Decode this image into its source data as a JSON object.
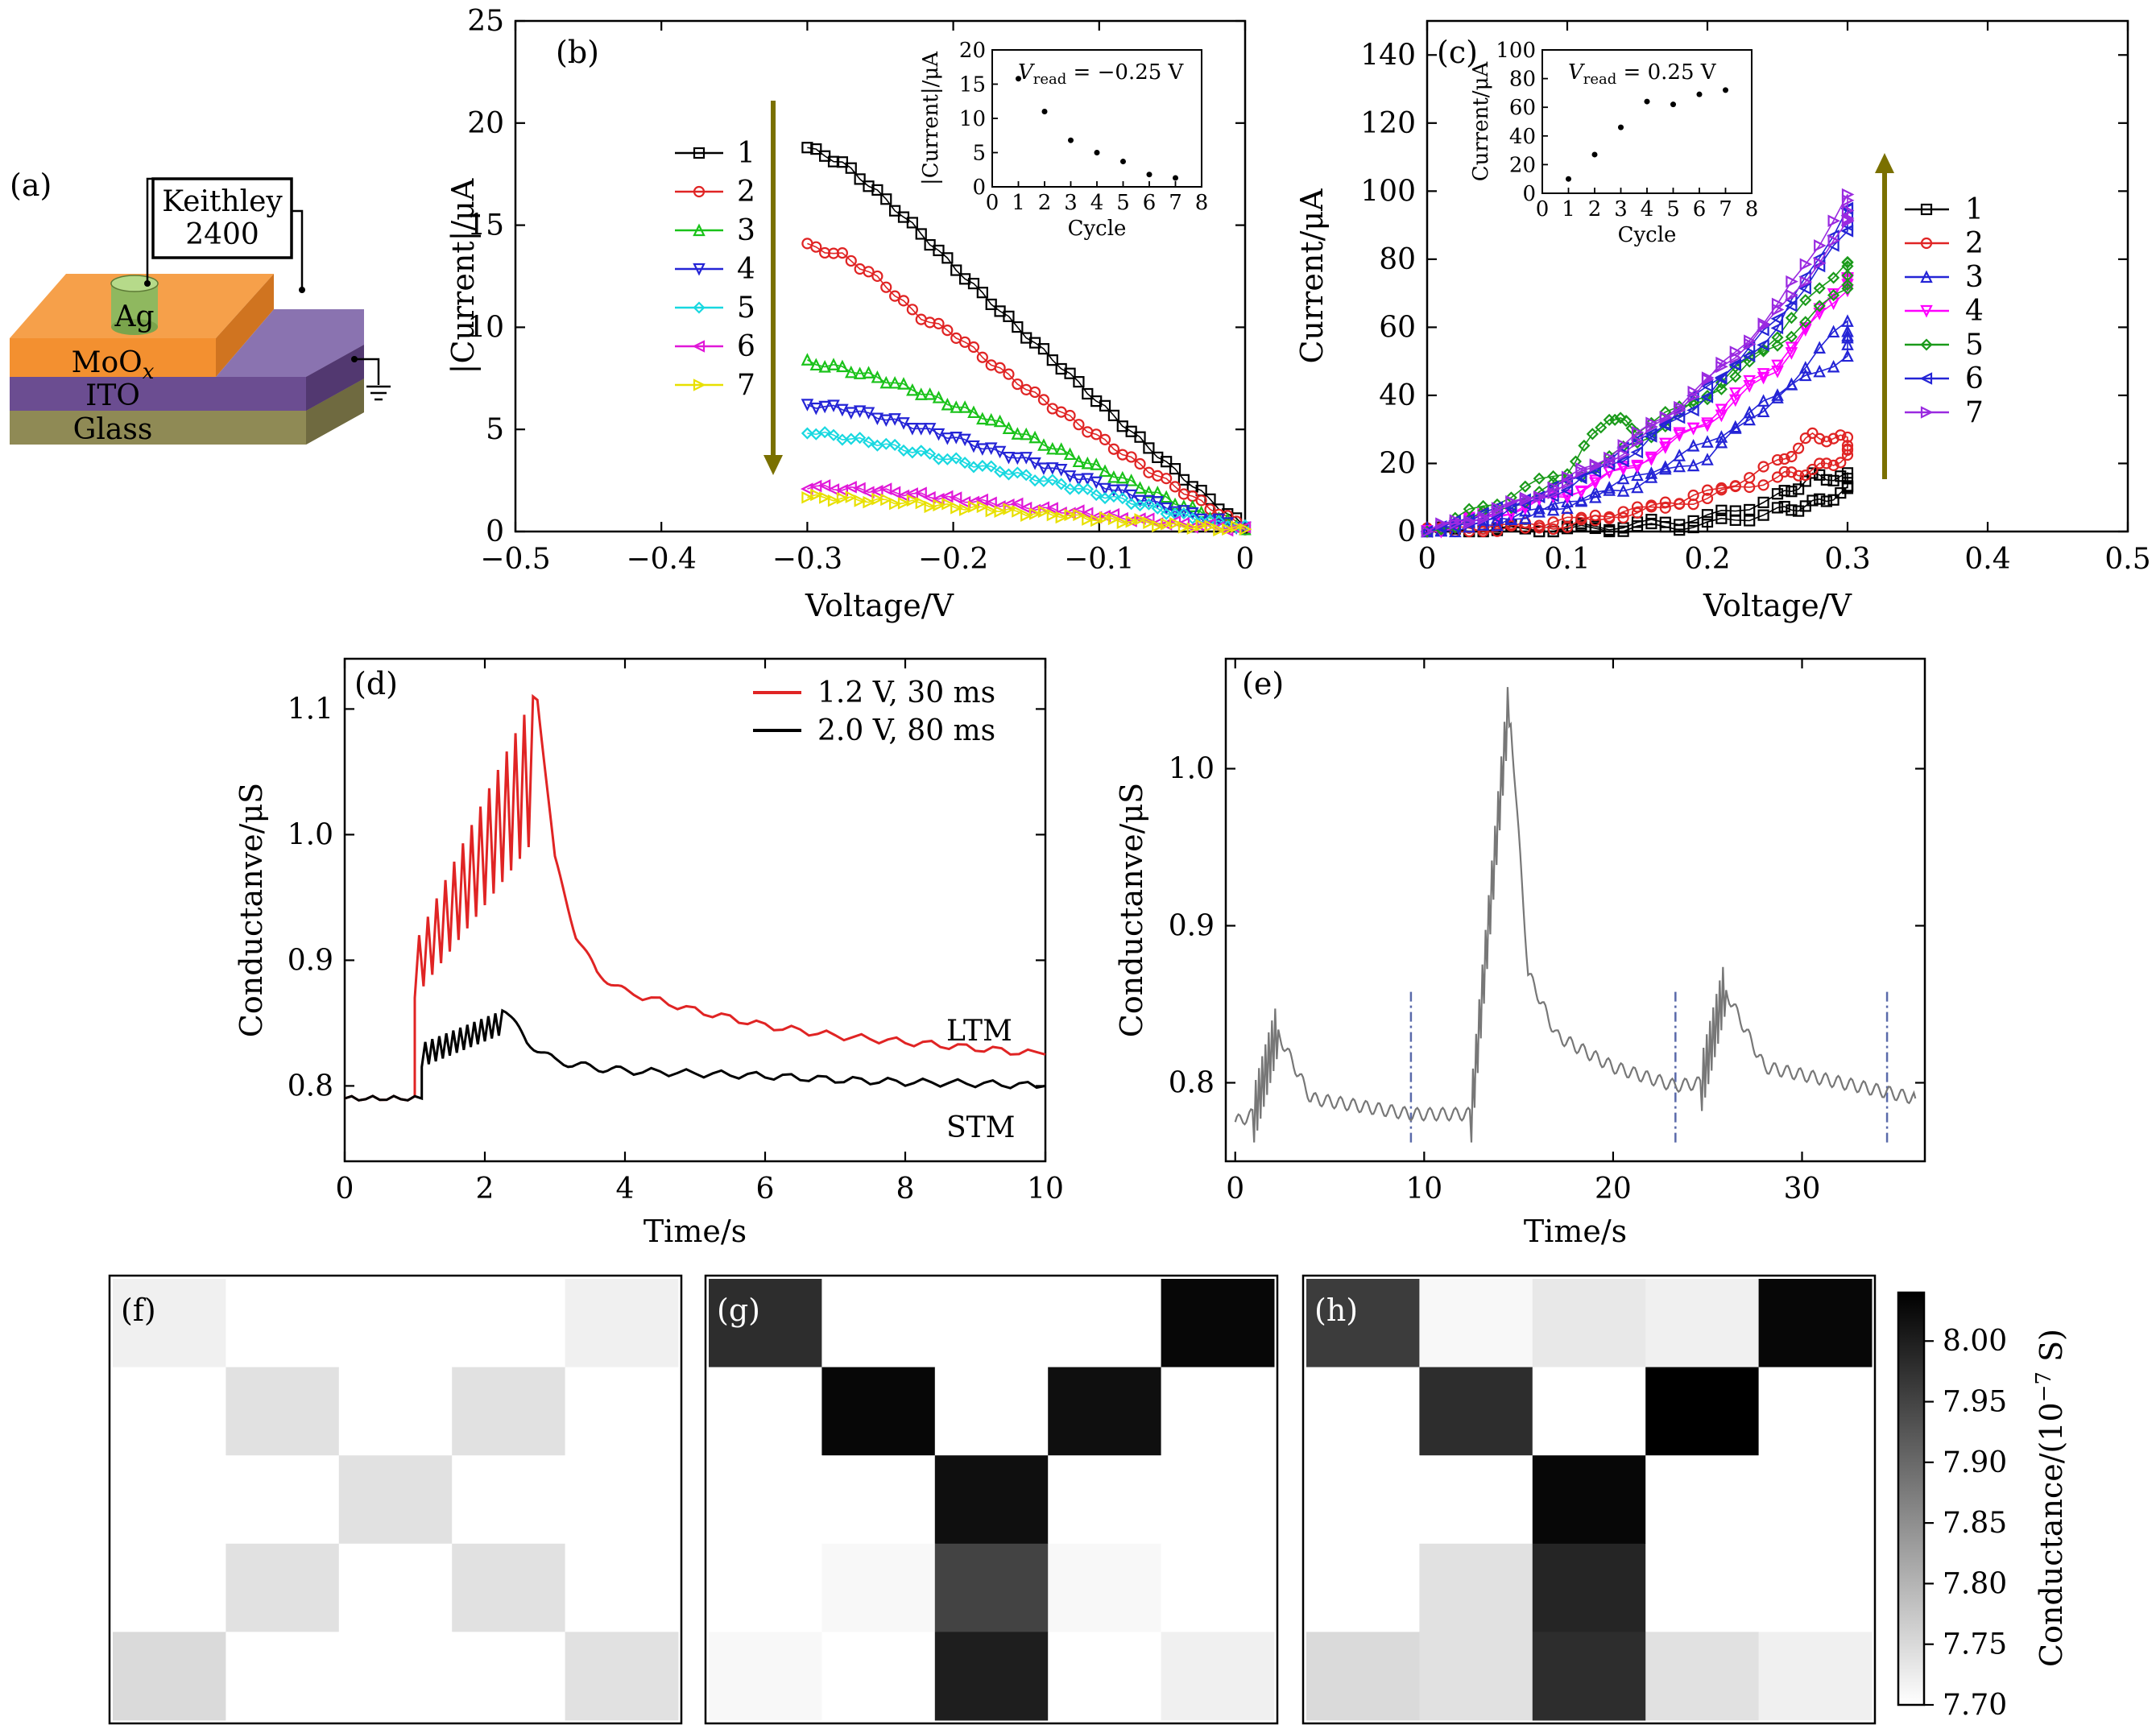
{
  "panel_labels": [
    "(a)",
    "(b)",
    "(c)",
    "(d)",
    "(e)",
    "(f)",
    "(g)",
    "(h)"
  ],
  "device": {
    "instrument_line1": "Keithley",
    "instrument_line2": "2400",
    "electrode": "Ag",
    "layer_moox": "MoOx",
    "layer_ito": "ITO",
    "layer_glass": "Glass",
    "colors": {
      "moox": "#f6a04a",
      "ito": "#6b4d91",
      "glass": "#8f8a55",
      "ag": "#9bc26a",
      "ito_top": "#8a73b0"
    }
  },
  "series_colors": [
    "#000000",
    "#e02424",
    "#19c219",
    "#2424d6",
    "#18d8e0",
    "#e018d8",
    "#e8e000"
  ],
  "series_colors_c": [
    "#000000",
    "#e02424",
    "#2424d6",
    "#ff00ff",
    "#1a9a1a",
    "#2424d6",
    "#9a2ae0"
  ],
  "chart_data": [
    {
      "panel": "(b)",
      "type": "line",
      "xlabel": "Voltage/V",
      "ylabel": "|Current|/μA",
      "xlim": [
        -0.5,
        0
      ],
      "ylim": [
        0,
        25
      ],
      "xticks": [
        -0.5,
        -0.4,
        -0.3,
        -0.2,
        -0.1,
        0
      ],
      "xtick_labels": [
        "−0.5",
        "−0.4",
        "−0.3",
        "−0.2",
        "−0.1",
        "0"
      ],
      "yticks": [
        0,
        5,
        10,
        15,
        20,
        25
      ],
      "legend": [
        "1",
        "2",
        "3",
        "4",
        "5",
        "6",
        "7"
      ],
      "legend_position": "left",
      "markers": [
        "square",
        "circle",
        "triangle-up",
        "triangle-down",
        "diamond",
        "triangle-left",
        "triangle-right"
      ],
      "x": [
        -0.3,
        -0.275,
        -0.25,
        -0.225,
        -0.2,
        -0.175,
        -0.15,
        -0.125,
        -0.1,
        -0.075,
        -0.05,
        -0.025,
        0
      ],
      "series": [
        {
          "name": "1",
          "values": [
            18.8,
            18.0,
            16.5,
            14.8,
            13.0,
            11.3,
            9.6,
            8.0,
            6.3,
            4.7,
            3.1,
            1.6,
            0.2
          ]
        },
        {
          "name": "2",
          "values": [
            14.0,
            13.5,
            12.3,
            10.6,
            9.7,
            8.3,
            7.0,
            5.8,
            4.6,
            3.4,
            2.3,
            1.2,
            0.2
          ]
        },
        {
          "name": "3",
          "values": [
            8.3,
            8.0,
            7.5,
            6.9,
            6.2,
            5.5,
            4.7,
            3.9,
            3.1,
            2.3,
            1.5,
            0.8,
            0.2
          ]
        },
        {
          "name": "4",
          "values": [
            6.2,
            6.0,
            5.6,
            5.1,
            4.6,
            4.0,
            3.5,
            2.9,
            2.3,
            1.7,
            1.1,
            0.6,
            0.2
          ]
        },
        {
          "name": "5",
          "values": [
            4.9,
            4.6,
            4.3,
            3.9,
            3.5,
            3.1,
            2.7,
            2.3,
            1.8,
            1.4,
            0.9,
            0.5,
            0.2
          ]
        },
        {
          "name": "6",
          "values": [
            2.2,
            2.1,
            2.0,
            1.8,
            1.6,
            1.4,
            1.2,
            1.0,
            0.8,
            0.6,
            0.4,
            0.25,
            0.1
          ]
        },
        {
          "name": "7",
          "values": [
            1.7,
            1.6,
            1.5,
            1.4,
            1.2,
            1.1,
            0.9,
            0.8,
            0.6,
            0.5,
            0.3,
            0.2,
            0.1
          ]
        }
      ],
      "arrow": {
        "direction": "down",
        "color": "#7a7000"
      },
      "inset": {
        "type": "scatter",
        "annotation": "V_read = −0.25 V",
        "annotation_v": "V",
        "annotation_sub": "read",
        "annotation_rest": " = −0.25 V",
        "xlabel": "Cycle",
        "ylabel": "|Current|/μA",
        "xlim": [
          0,
          8
        ],
        "ylim": [
          0,
          20
        ],
        "xticks": [
          0,
          1,
          2,
          3,
          4,
          5,
          6,
          7,
          8
        ],
        "yticks": [
          0,
          5,
          10,
          15,
          20
        ],
        "x": [
          1,
          2,
          3,
          4,
          5,
          6,
          7
        ],
        "y": [
          15.8,
          11.0,
          6.8,
          5.0,
          3.7,
          1.8,
          1.3
        ]
      }
    },
    {
      "panel": "(c)",
      "type": "line",
      "xlabel": "Voltage/V",
      "ylabel": "Current/μA",
      "xlim": [
        0,
        0.5
      ],
      "ylim": [
        0,
        150
      ],
      "xticks": [
        0,
        0.1,
        0.2,
        0.3,
        0.4,
        0.5
      ],
      "xtick_labels": [
        "0",
        "0.1",
        "0.2",
        "0.3",
        "0.4",
        "0.5"
      ],
      "yticks": [
        0,
        20,
        40,
        60,
        80,
        100,
        120,
        140
      ],
      "legend": [
        "1",
        "2",
        "3",
        "4",
        "5",
        "6",
        "7"
      ],
      "legend_position": "right",
      "markers": [
        "square",
        "circle",
        "triangle-up",
        "triangle-down",
        "diamond",
        "triangle-left",
        "triangle-right"
      ],
      "series": [
        {
          "name": "1",
          "x": [
            0,
            0.05,
            0.1,
            0.15,
            0.2,
            0.25,
            0.275,
            0.3,
            0.3,
            0.275,
            0.25,
            0.2,
            0.15,
            0.1,
            0.05,
            0
          ],
          "values": [
            0,
            0.5,
            1,
            2,
            4,
            10,
            16,
            16,
            12,
            8,
            6,
            2,
            1,
            0.5,
            0.2,
            0
          ]
        },
        {
          "name": "2",
          "x": [
            0,
            0.05,
            0.1,
            0.15,
            0.2,
            0.25,
            0.275,
            0.3,
            0.3,
            0.275,
            0.25,
            0.2,
            0.15,
            0.1,
            0.05,
            0
          ],
          "values": [
            0,
            1,
            3,
            6,
            11,
            20,
            28,
            27,
            22,
            18,
            16,
            10,
            6,
            2,
            1,
            0
          ]
        },
        {
          "name": "3",
          "x": [
            0,
            0.05,
            0.1,
            0.15,
            0.2,
            0.25,
            0.3,
            0.3,
            0.25,
            0.2,
            0.15,
            0.1,
            0.05,
            0
          ],
          "values": [
            0,
            3,
            8,
            16,
            26,
            40,
            62,
            52,
            40,
            22,
            14,
            8,
            3,
            0
          ]
        },
        {
          "name": "4",
          "x": [
            0,
            0.05,
            0.1,
            0.15,
            0.2,
            0.25,
            0.3,
            0.3,
            0.25,
            0.2,
            0.15,
            0.1,
            0.05,
            0
          ],
          "values": [
            0,
            5,
            11,
            20,
            32,
            48,
            75,
            72,
            50,
            33,
            20,
            11,
            5,
            0
          ]
        },
        {
          "name": "5",
          "x": [
            0,
            0.05,
            0.1,
            0.13,
            0.15,
            0.2,
            0.25,
            0.3,
            0.3,
            0.25,
            0.2,
            0.15,
            0.1,
            0.05,
            0
          ],
          "values": [
            0,
            9,
            18,
            34,
            30,
            40,
            58,
            80,
            72,
            55,
            40,
            26,
            15,
            6,
            0
          ]
        },
        {
          "name": "6",
          "x": [
            0,
            0.05,
            0.1,
            0.15,
            0.2,
            0.25,
            0.3,
            0.3,
            0.25,
            0.2,
            0.15,
            0.1,
            0.05,
            0
          ],
          "values": [
            0,
            5,
            13,
            24,
            40,
            60,
            95,
            88,
            62,
            42,
            26,
            14,
            6,
            0
          ]
        },
        {
          "name": "7",
          "x": [
            0,
            0.05,
            0.1,
            0.15,
            0.2,
            0.25,
            0.3,
            0.3,
            0.25,
            0.2,
            0.15,
            0.1,
            0.05,
            0
          ],
          "values": [
            0,
            6,
            14,
            26,
            44,
            66,
            98,
            90,
            64,
            44,
            28,
            15,
            6,
            0
          ]
        }
      ],
      "arrow": {
        "direction": "up",
        "color": "#7a7000"
      },
      "inset": {
        "type": "scatter",
        "annotation": "V_read = 0.25 V",
        "annotation_v": "V",
        "annotation_sub": "read",
        "annotation_rest": " = 0.25 V",
        "xlabel": "Cycle",
        "ylabel": "Current/μA",
        "xlim": [
          0,
          8
        ],
        "ylim": [
          0,
          100
        ],
        "xticks": [
          0,
          1,
          2,
          3,
          4,
          5,
          6,
          7,
          8
        ],
        "yticks": [
          0,
          20,
          40,
          60,
          80,
          100
        ],
        "x": [
          1,
          2,
          3,
          4,
          5,
          6,
          7
        ],
        "y": [
          10,
          27,
          46,
          64,
          62,
          69,
          72
        ]
      }
    },
    {
      "panel": "(d)",
      "type": "line",
      "xlabel": "Time/s",
      "ylabel": "Conductanve/μS",
      "xlim": [
        0,
        10
      ],
      "ylim": [
        0.74,
        1.14
      ],
      "xticks": [
        0,
        2,
        4,
        6,
        8,
        10
      ],
      "yticks": [
        0.8,
        0.9,
        1.0,
        1.1
      ],
      "ytick_labels": [
        "0.8",
        "0.9",
        "1.0",
        "1.1"
      ],
      "legend_position": "top-right",
      "series": [
        {
          "name": "1.2 V, 30 ms",
          "color": "#e02424",
          "pulses": {
            "start": 1.0,
            "end": 2.75,
            "count": 14,
            "peak_start": 0.92,
            "peak_end": 1.11,
            "trough_start": 0.87,
            "trough_end": 0.99
          },
          "x": [
            0,
            0.5,
            0.9,
            2.75,
            3.0,
            3.3,
            3.6,
            4.0,
            5.0,
            6.0,
            7.0,
            8.0,
            9.0,
            10.0
          ],
          "values": [
            0.79,
            0.79,
            0.79,
            1.11,
            0.98,
            0.92,
            0.89,
            0.875,
            0.86,
            0.848,
            0.84,
            0.835,
            0.83,
            0.825
          ]
        },
        {
          "name": "2.0 V, 80 ms",
          "color": "#000000",
          "pulses": {
            "start": 1.1,
            "end": 2.3,
            "count": 12,
            "peak_start": 0.835,
            "peak_end": 0.86,
            "trough_start": 0.815,
            "trough_end": 0.84
          },
          "x": [
            0,
            0.5,
            1.0,
            2.3,
            2.6,
            3.0,
            3.5,
            4.0,
            5.0,
            6.0,
            7.0,
            8.0,
            9.0,
            10.0
          ],
          "values": [
            0.79,
            0.79,
            0.8,
            0.86,
            0.835,
            0.82,
            0.815,
            0.812,
            0.81,
            0.808,
            0.805,
            0.803,
            0.802,
            0.8
          ]
        }
      ],
      "annotations": [
        "LTM",
        "STM"
      ]
    },
    {
      "panel": "(e)",
      "type": "line",
      "xlabel": "Time/s",
      "ylabel": "Conductanve/μS",
      "xlim": [
        -0.5,
        36.5
      ],
      "ylim": [
        0.75,
        1.07
      ],
      "xticks": [
        0,
        10,
        20,
        30
      ],
      "yticks": [
        0.8,
        0.9,
        1.0
      ],
      "ytick_labels": [
        "0.8",
        "0.9",
        "1.0"
      ],
      "color": "#777777",
      "vlines": [
        9.3,
        23.3,
        34.5
      ],
      "vline_color": "#5a6aaa",
      "events": [
        {
          "start": 1.0,
          "peak_t": 2.2,
          "base": 0.775,
          "peak": 0.833,
          "decay_end": 4.0,
          "after": 0.782
        },
        {
          "start": 12.5,
          "peak_t": 14.5,
          "base": 0.78,
          "peak": 1.045,
          "decay_end": 20.0,
          "after": 0.8
        },
        {
          "start": 24.7,
          "peak_t": 25.9,
          "base": 0.798,
          "peak": 0.86,
          "decay_end": 28.0,
          "after": 0.802
        }
      ],
      "series": [
        {
          "x": [
            0,
            1.0,
            2.2,
            4.0,
            9.3,
            12.5,
            14.5,
            15.5,
            17.0,
            20.0,
            23.3,
            24.7,
            25.9,
            28.0,
            34.5,
            36.0
          ],
          "values": [
            0.775,
            0.78,
            0.833,
            0.79,
            0.78,
            0.78,
            1.045,
            0.87,
            0.83,
            0.81,
            0.798,
            0.8,
            0.86,
            0.81,
            0.794,
            0.79
          ]
        }
      ]
    },
    {
      "panel": "(f)",
      "type": "heatmap",
      "rows": 5,
      "cols": 5,
      "values": [
        [
          7.72,
          7.7,
          7.7,
          7.7,
          7.72
        ],
        [
          7.7,
          7.74,
          7.7,
          7.74,
          7.7
        ],
        [
          7.7,
          7.7,
          7.74,
          7.7,
          7.7
        ],
        [
          7.7,
          7.74,
          7.7,
          7.74,
          7.7
        ],
        [
          7.75,
          7.7,
          7.7,
          7.7,
          7.74
        ]
      ]
    },
    {
      "panel": "(g)",
      "type": "heatmap",
      "rows": 5,
      "cols": 5,
      "values": [
        [
          7.98,
          7.7,
          7.7,
          7.7,
          8.03
        ],
        [
          7.7,
          8.03,
          7.7,
          8.02,
          7.7
        ],
        [
          7.7,
          7.7,
          8.02,
          7.7,
          7.7
        ],
        [
          7.7,
          7.71,
          7.95,
          7.71,
          7.7
        ],
        [
          7.71,
          7.7,
          8.0,
          7.7,
          7.72
        ]
      ]
    },
    {
      "panel": "(h)",
      "type": "heatmap",
      "rows": 5,
      "cols": 5,
      "values": [
        [
          7.96,
          7.71,
          7.73,
          7.72,
          8.03
        ],
        [
          7.7,
          7.98,
          7.7,
          8.04,
          7.7
        ],
        [
          7.7,
          7.7,
          8.03,
          7.7,
          7.7
        ],
        [
          7.7,
          7.74,
          7.99,
          7.7,
          7.7
        ],
        [
          7.75,
          7.74,
          7.98,
          7.74,
          7.72
        ]
      ]
    }
  ],
  "colorbar": {
    "label": "Conductance/(10",
    "label_exp": "−7",
    "label_end": " S)",
    "min": 7.7,
    "max": 8.04,
    "ticks": [
      7.7,
      7.75,
      7.8,
      7.85,
      7.9,
      7.95,
      8.0
    ],
    "tick_labels": [
      "7.70",
      "7.75",
      "7.80",
      "7.85",
      "7.90",
      "7.95",
      "8.00"
    ]
  }
}
